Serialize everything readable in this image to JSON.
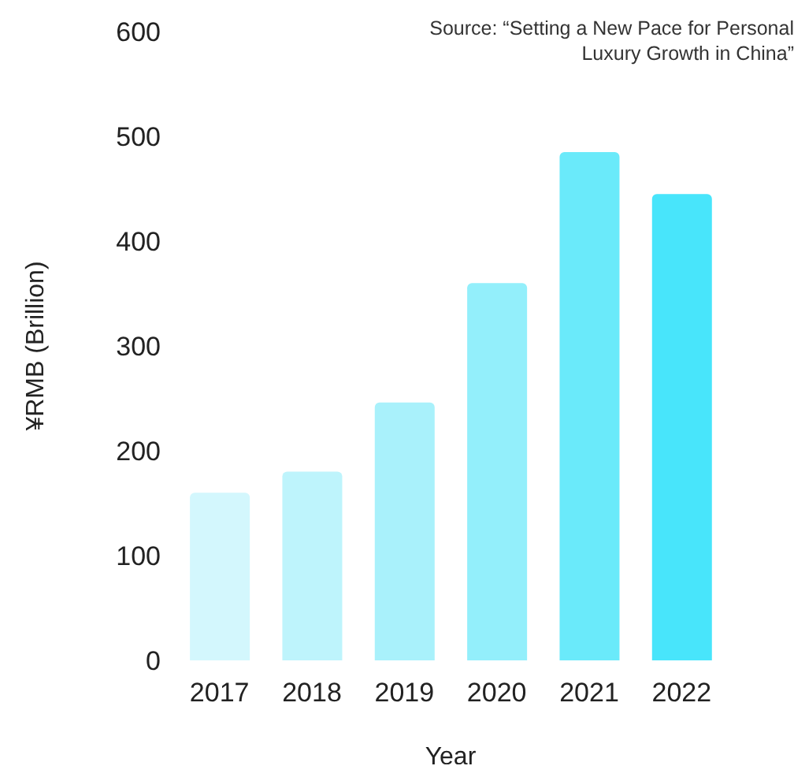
{
  "chart_data": {
    "type": "bar",
    "xlabel": "Year",
    "ylabel": "¥RMB (Brillion)",
    "categories": [
      "2017",
      "2018",
      "2019",
      "2020",
      "2021",
      "2022"
    ],
    "values": [
      160,
      180,
      246,
      360,
      485,
      445
    ],
    "colors": [
      "#d3f7fd",
      "#bef4fc",
      "#a9f1fb",
      "#93effb",
      "#6aeafa",
      "#48e5fb"
    ],
    "ylim": [
      0,
      600
    ],
    "yticks": [
      0,
      100,
      200,
      300,
      400,
      500,
      600
    ],
    "grid": false,
    "annotations": [
      "Source: “Setting a New Pace for Personal Luxury Growth in China”"
    ]
  }
}
